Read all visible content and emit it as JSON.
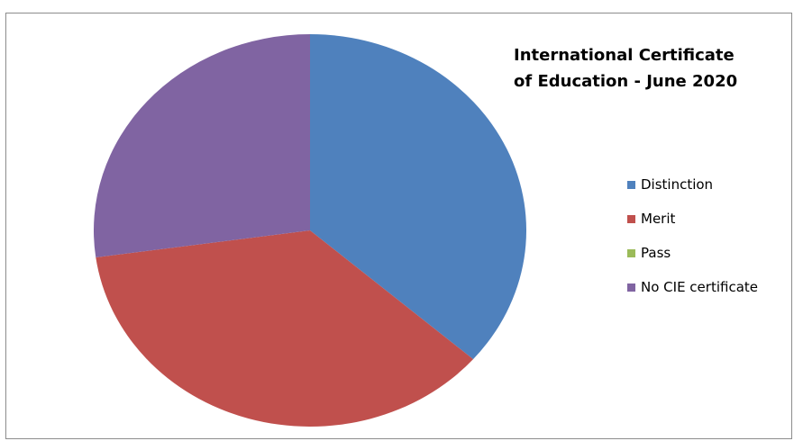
{
  "chart_data": {
    "type": "pie",
    "title_lines": [
      "International  Certificate",
      "of Education - June 2020"
    ],
    "categories": [
      "Distinction",
      "Merit",
      "Pass",
      "No CIE certificate"
    ],
    "values": [
      36.4,
      36.4,
      0,
      27.2
    ],
    "colors": [
      "#4f81bd",
      "#c0504d",
      "#9bbb59",
      "#8064a2"
    ],
    "legend_position": "right"
  }
}
